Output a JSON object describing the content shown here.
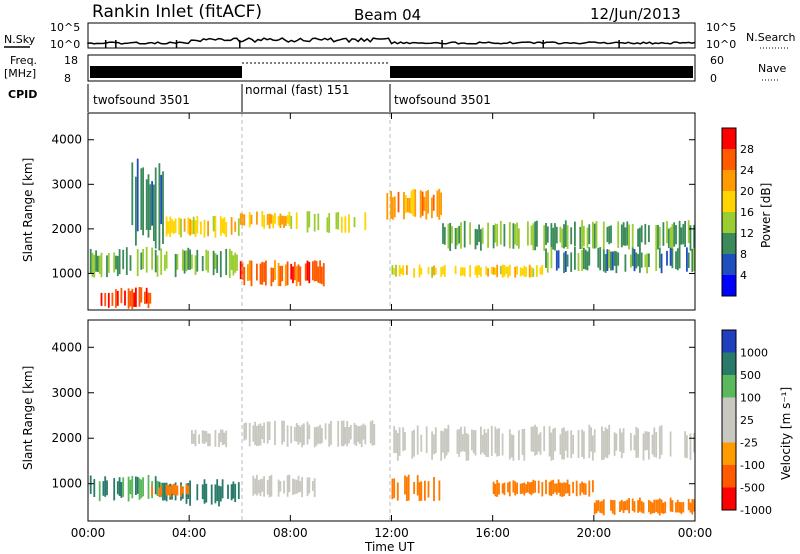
{
  "header": {
    "station": "Rankin Inlet (fitACF)",
    "beam": "Beam 04",
    "date": "12/Jun/2013"
  },
  "panels": {
    "nsky": {
      "label": "N.Sky",
      "right_label": "N.Search",
      "yticks_left": [
        "10^5",
        "10^0"
      ],
      "yticks_right": [
        "10^5",
        "10^0"
      ]
    },
    "freq": {
      "label_line1": "Freq.",
      "label_line2": "[MHz]",
      "yticks_left": [
        "18",
        "8"
      ],
      "right_label": "Nave",
      "yticks_right": [
        "60",
        "0"
      ]
    },
    "cpid": {
      "label": "CPID",
      "segments": [
        {
          "name": "twofsound 3501",
          "start": 0,
          "end": 6
        },
        {
          "name": "normal (fast) 151",
          "start": 6,
          "end": 12.5
        },
        {
          "name": "twofsound 3501",
          "start": 12.5,
          "end": 24
        }
      ]
    }
  },
  "x_axis": {
    "label": "Time UT",
    "ticks": [
      "00:00",
      "04:00",
      "08:00",
      "12:00",
      "16:00",
      "20:00",
      "00:00"
    ]
  },
  "chart_data": [
    {
      "type": "heatmap",
      "title": "Power",
      "ylabel": "Slant Range [km]",
      "xlabel": "Time UT",
      "xlim": [
        0,
        24
      ],
      "ylim": [
        180,
        4600
      ],
      "yticks": [
        1000,
        2000,
        3000,
        4000
      ],
      "colorbar": {
        "label": "Power [dB]",
        "ticks": [
          "28",
          "24",
          "20",
          "16",
          "12",
          "8",
          "4"
        ],
        "colors": [
          "#ff0000",
          "#ff5a00",
          "#ff9a00",
          "#ffd400",
          "#9acd32",
          "#3a8a5a",
          "#1f4fbf",
          "#0000ff"
        ]
      },
      "regions": [
        {
          "t0": 0.0,
          "t1": 6.0,
          "r0": 900,
          "r1": 1600,
          "level": 12
        },
        {
          "t0": 1.5,
          "t1": 3.0,
          "r0": 1500,
          "r1": 3600,
          "level": 8
        },
        {
          "t0": 3.0,
          "t1": 6.0,
          "r0": 1800,
          "r1": 2300,
          "level": 18
        },
        {
          "t0": 0.5,
          "t1": 2.5,
          "r0": 200,
          "r1": 700,
          "level": 28
        },
        {
          "t0": 6.0,
          "t1": 8.0,
          "r0": 2000,
          "r1": 2400,
          "level": 20
        },
        {
          "t0": 8.0,
          "t1": 11.0,
          "r0": 1900,
          "r1": 2400,
          "level": 16
        },
        {
          "t0": 6.0,
          "t1": 9.5,
          "r0": 700,
          "r1": 1300,
          "level": 26
        },
        {
          "t0": 11.8,
          "t1": 14.0,
          "r0": 2200,
          "r1": 2900,
          "level": 22
        },
        {
          "t0": 12.0,
          "t1": 18.0,
          "r0": 900,
          "r1": 1200,
          "level": 18
        },
        {
          "t0": 14.0,
          "t1": 24.0,
          "r0": 1500,
          "r1": 2200,
          "level": 12
        },
        {
          "t0": 18.0,
          "t1": 24.0,
          "r0": 1000,
          "r1": 1600,
          "level": 10
        }
      ]
    },
    {
      "type": "heatmap",
      "title": "Velocity",
      "ylabel": "Slant Range [km]",
      "xlabel": "Time UT",
      "xlim": [
        0,
        24
      ],
      "ylim": [
        180,
        4600
      ],
      "yticks": [
        1000,
        2000,
        3000,
        4000
      ],
      "colorbar": {
        "label": "Velocity [m s⁻¹]",
        "ticks": [
          "1000",
          "500",
          "100",
          "25",
          "-25",
          "-100",
          "-500",
          "-1000"
        ],
        "colors": [
          "#1f3fbf",
          "#2a7a6a",
          "#5cb85c",
          "#c8c8c0",
          "#c8c8c0",
          "#ff9a00",
          "#ff5a00",
          "#ff0000"
        ]
      },
      "regions": [
        {
          "t0": 0.0,
          "t1": 3.0,
          "r0": 600,
          "r1": 1200,
          "level": 100
        },
        {
          "t0": 3.0,
          "t1": 6.0,
          "r0": 500,
          "r1": 1100,
          "level": 300
        },
        {
          "t0": 2.5,
          "t1": 4.0,
          "r0": 700,
          "r1": 1000,
          "level": -200
        },
        {
          "t0": 6.0,
          "t1": 11.5,
          "r0": 1800,
          "r1": 2400,
          "level": 0
        },
        {
          "t0": 4.0,
          "t1": 6.0,
          "r0": 1800,
          "r1": 2200,
          "level": 0
        },
        {
          "t0": 6.5,
          "t1": 9.0,
          "r0": 700,
          "r1": 1200,
          "level": 0
        },
        {
          "t0": 12.0,
          "t1": 14.0,
          "r0": 600,
          "r1": 1200,
          "level": -150
        },
        {
          "t0": 12.0,
          "t1": 24.0,
          "r0": 1500,
          "r1": 2300,
          "level": 0
        },
        {
          "t0": 16.0,
          "t1": 20.0,
          "r0": 700,
          "r1": 1100,
          "level": -120
        },
        {
          "t0": 20.0,
          "t1": 24.0,
          "r0": 300,
          "r1": 700,
          "level": -130
        }
      ]
    }
  ]
}
